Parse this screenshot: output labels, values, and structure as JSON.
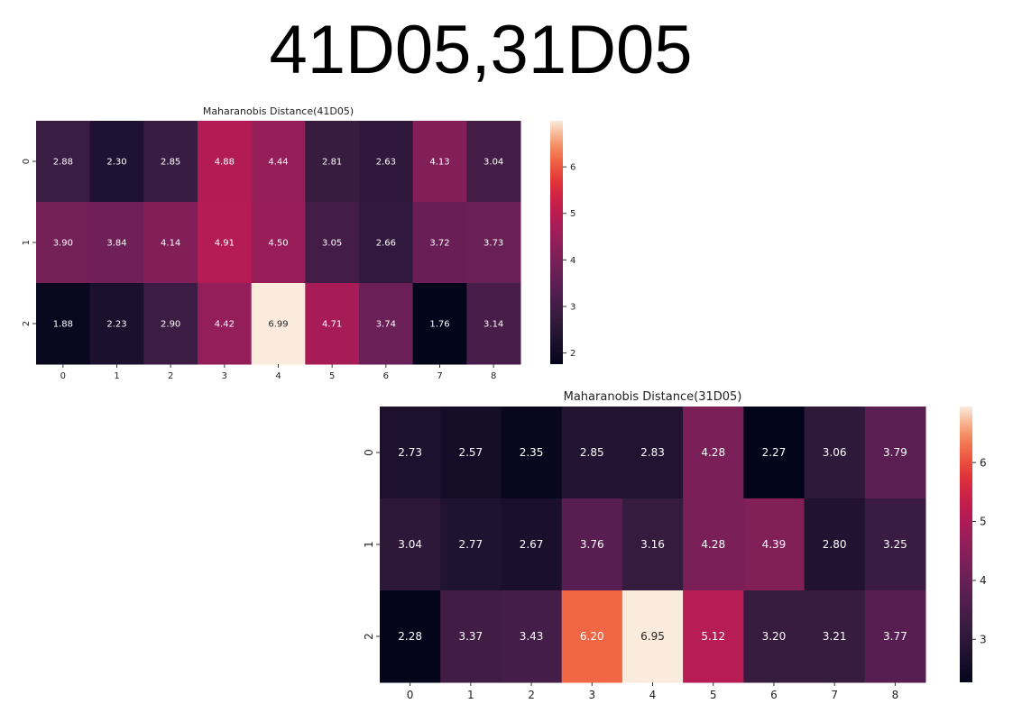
{
  "page": {
    "title": "41D05,31D05"
  },
  "chart_data": [
    {
      "type": "heatmap",
      "title": "Maharanobis Distance(41D05)",
      "x": [
        "0",
        "1",
        "2",
        "3",
        "4",
        "5",
        "6",
        "7",
        "8"
      ],
      "y": [
        "0",
        "1",
        "2"
      ],
      "values": [
        [
          2.88,
          2.3,
          2.85,
          4.88,
          4.44,
          2.81,
          2.63,
          4.13,
          3.04
        ],
        [
          3.9,
          3.84,
          4.14,
          4.91,
          4.5,
          3.05,
          2.66,
          3.72,
          3.73
        ],
        [
          1.88,
          2.23,
          2.9,
          4.42,
          6.99,
          4.71,
          3.74,
          1.76,
          3.14
        ]
      ],
      "colorbar": {
        "range": [
          1.76,
          6.99
        ],
        "ticks": [
          2,
          3,
          4,
          5,
          6
        ]
      },
      "colormap": "rocket"
    },
    {
      "type": "heatmap",
      "title": "Maharanobis Distance(31D05)",
      "x": [
        "0",
        "1",
        "2",
        "3",
        "4",
        "5",
        "6",
        "7",
        "8"
      ],
      "y": [
        "0",
        "1",
        "2"
      ],
      "values": [
        [
          2.73,
          2.57,
          2.35,
          2.85,
          2.83,
          4.28,
          2.27,
          3.06,
          3.79
        ],
        [
          3.04,
          2.77,
          2.67,
          3.76,
          3.16,
          4.28,
          4.39,
          2.8,
          3.25
        ],
        [
          2.28,
          3.37,
          3.43,
          6.2,
          6.95,
          5.12,
          3.2,
          3.21,
          3.77
        ]
      ],
      "colorbar": {
        "range": [
          2.27,
          6.95
        ],
        "ticks": [
          3,
          4,
          5,
          6
        ]
      },
      "colormap": "rocket"
    }
  ]
}
